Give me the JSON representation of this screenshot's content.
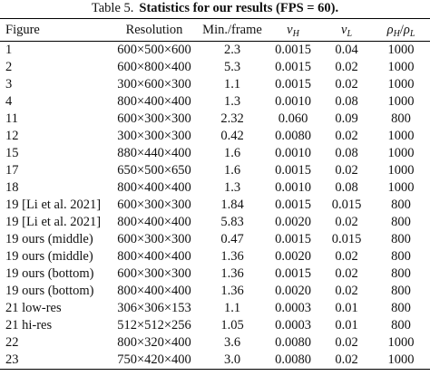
{
  "caption": {
    "label": "Table 5.",
    "title": "Statistics for our results (FPS = 60)."
  },
  "table": {
    "columns": [
      "Figure",
      "Resolution",
      "Min./frame",
      [
        {
          "t": "ν",
          "sub": "H"
        }
      ],
      [
        {
          "t": "ν",
          "sub": "L"
        }
      ],
      [
        {
          "t": "ρ",
          "sub": "H"
        },
        {
          "t": "/"
        },
        {
          "t": "ρ",
          "sub": "L"
        }
      ]
    ],
    "rows": [
      [
        "1",
        "600×500×600",
        "2.3",
        "0.0015",
        "0.04",
        "1000"
      ],
      [
        "2",
        "600×800×400",
        "5.3",
        "0.0015",
        "0.02",
        "1000"
      ],
      [
        "3",
        "300×600×300",
        "1.1",
        "0.0015",
        "0.02",
        "1000"
      ],
      [
        "4",
        "800×400×400",
        "1.3",
        "0.0010",
        "0.08",
        "1000"
      ],
      [
        "11",
        "600×300×300",
        "2.32",
        "0.060",
        "0.09",
        "800"
      ],
      [
        "12",
        "300×300×300",
        "0.42",
        "0.0080",
        "0.02",
        "1000"
      ],
      [
        "15",
        "880×440×400",
        "1.6",
        "0.0010",
        "0.08",
        "1000"
      ],
      [
        "17",
        "650×500×650",
        "1.6",
        "0.0015",
        "0.02",
        "1000"
      ],
      [
        "18",
        "800×400×400",
        "1.3",
        "0.0010",
        "0.08",
        "1000"
      ],
      [
        "19 [Li et al. 2021]",
        "600×300×300",
        "1.84",
        "0.0015",
        "0.015",
        "800"
      ],
      [
        "19 [Li et al. 2021]",
        "800×400×400",
        "5.83",
        "0.0020",
        "0.02",
        "800"
      ],
      [
        "19 ours (middle)",
        "600×300×300",
        "0.47",
        "0.0015",
        "0.015",
        "800"
      ],
      [
        "19 ours (middle)",
        "800×400×400",
        "1.36",
        "0.0020",
        "0.02",
        "800"
      ],
      [
        "19 ours (bottom)",
        "600×300×300",
        "1.36",
        "0.0015",
        "0.02",
        "800"
      ],
      [
        "19 ours (bottom)",
        "800×400×400",
        "1.36",
        "0.0020",
        "0.02",
        "800"
      ],
      [
        "21 low-res",
        "306×306×153",
        "1.1",
        "0.0003",
        "0.01",
        "800"
      ],
      [
        "21 hi-res",
        "512×512×256",
        "1.05",
        "0.0003",
        "0.01",
        "800"
      ],
      [
        "22",
        "800×320×400",
        "3.6",
        "0.0080",
        "0.02",
        "1000"
      ],
      [
        "23",
        "750×420×400",
        "3.0",
        "0.0080",
        "0.02",
        "1000"
      ]
    ]
  }
}
